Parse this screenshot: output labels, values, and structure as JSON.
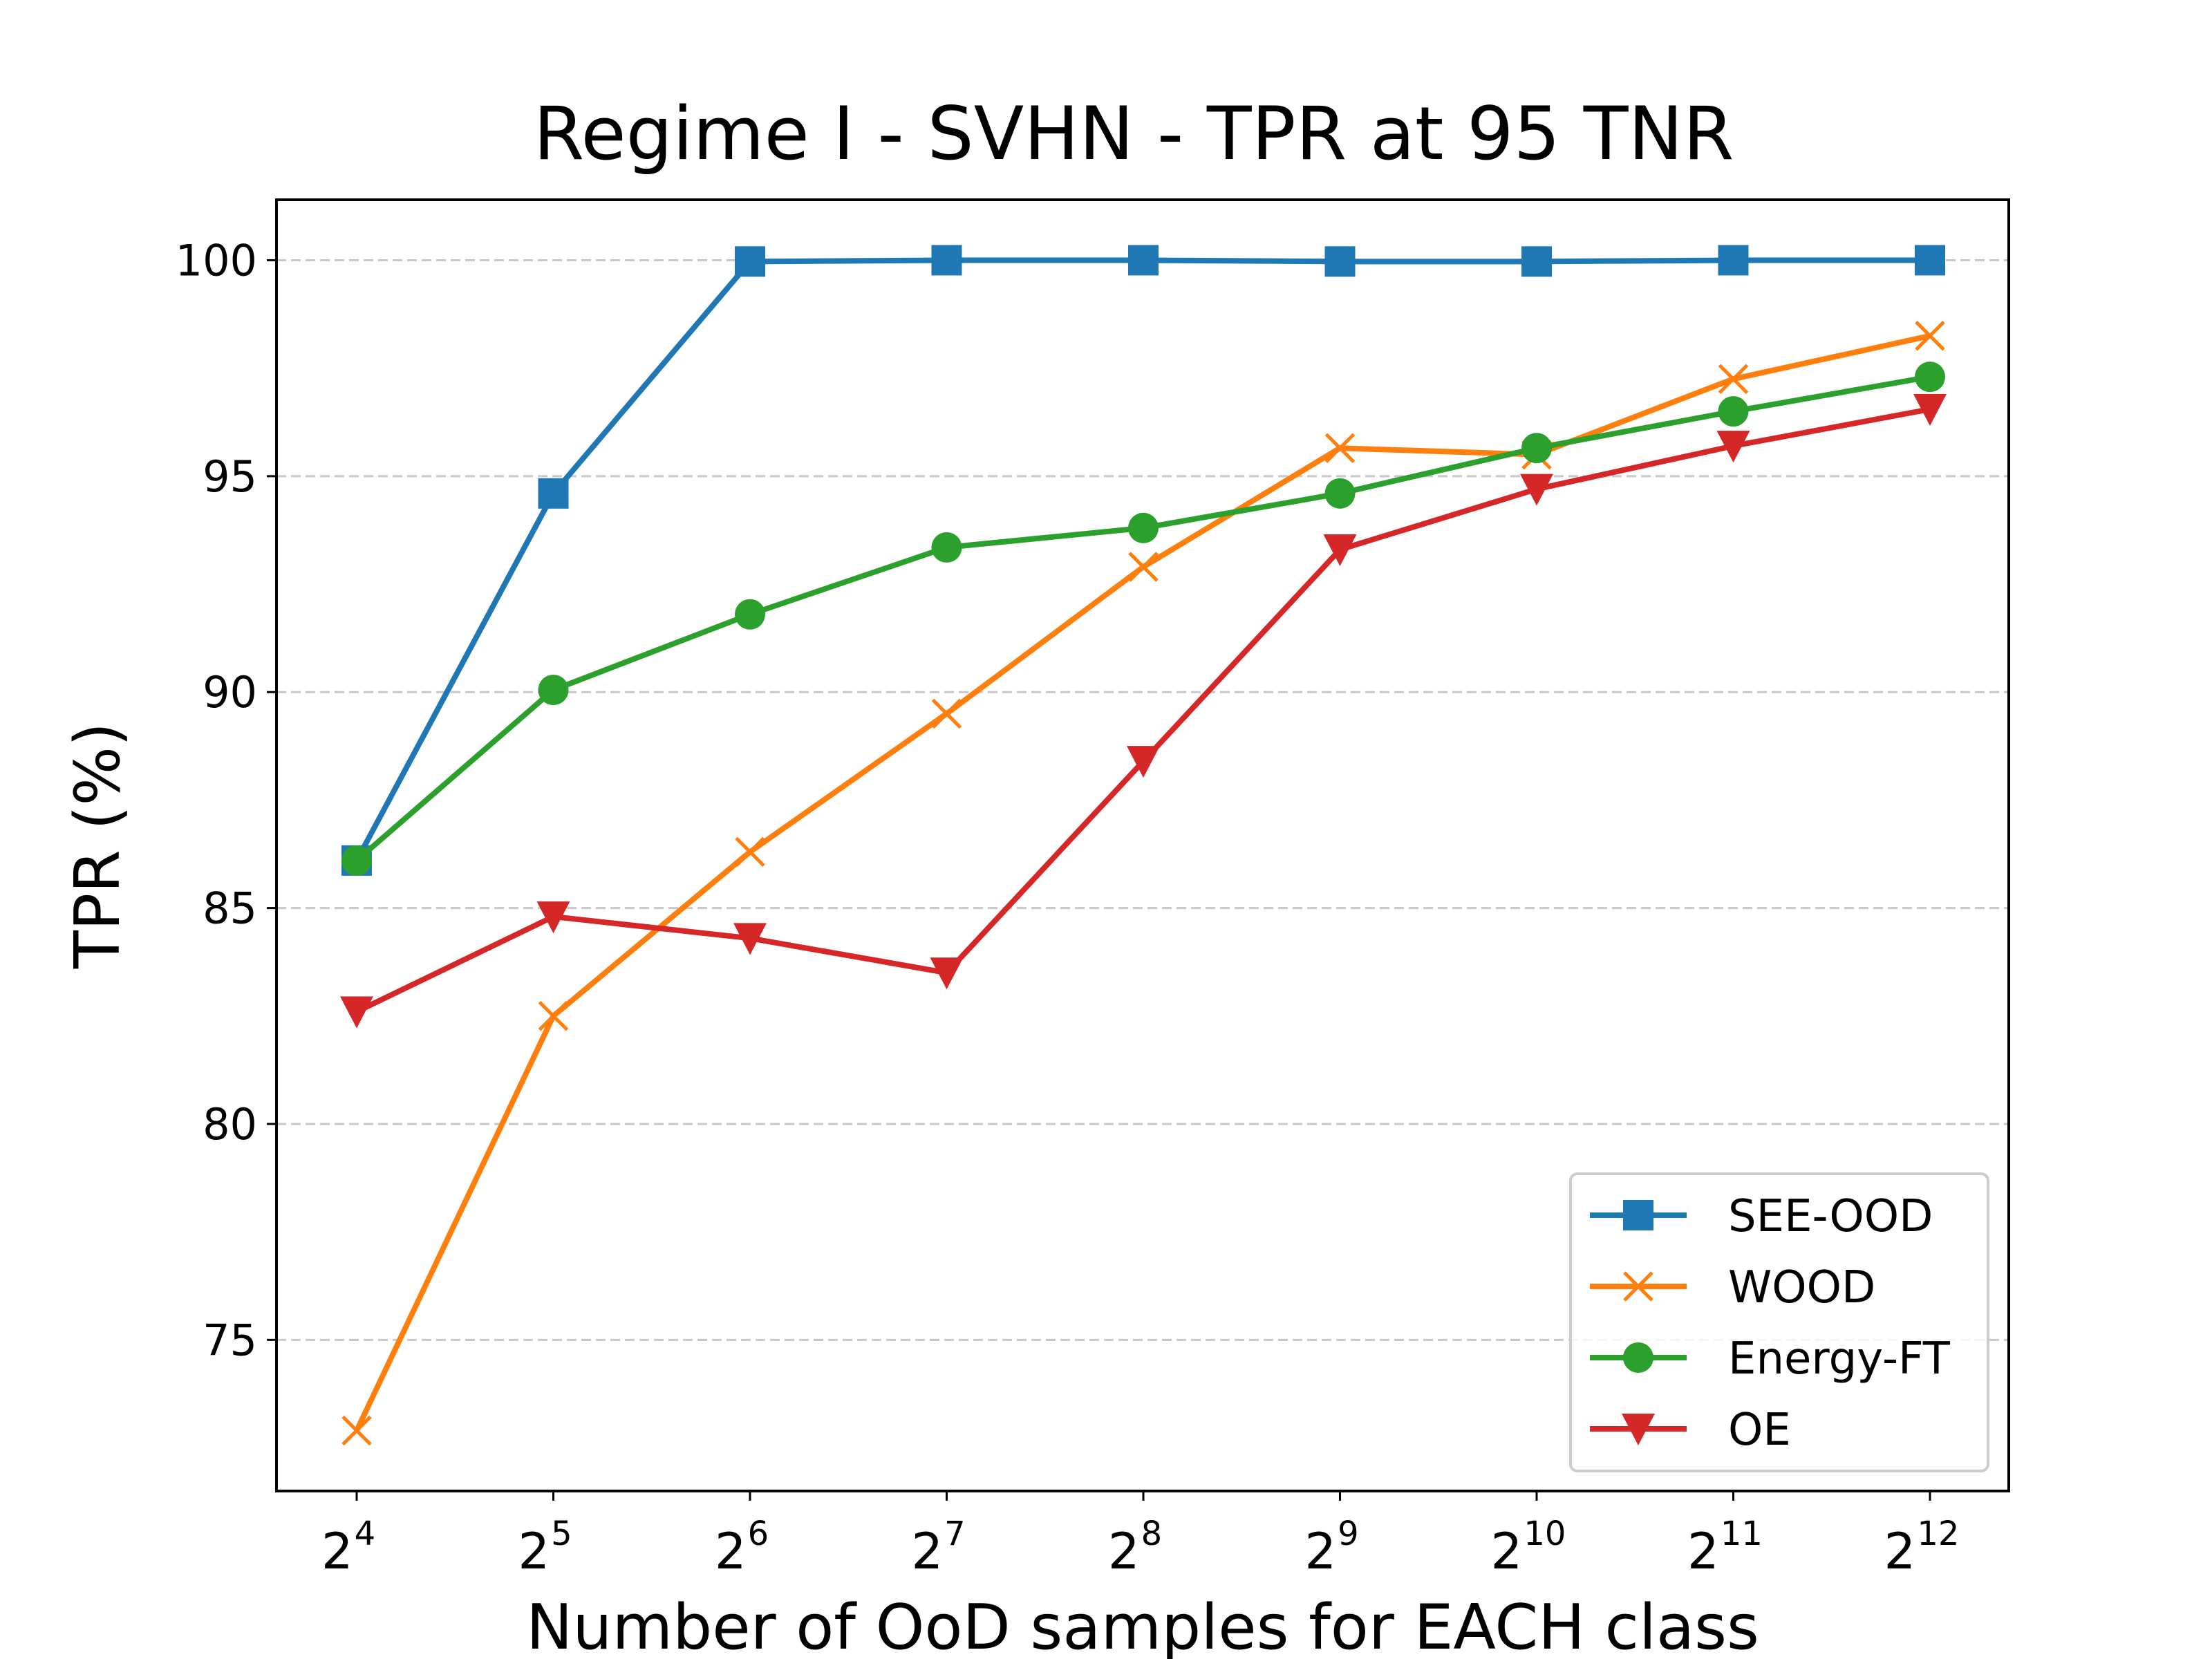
{
  "chart_data": {
    "type": "line",
    "title": "Regime I - SVHN - TPR at 95 TNR",
    "xlabel": "Number of OoD samples for EACH class",
    "ylabel": "TPR (%)",
    "x_base": "2",
    "x_exponents": [
      "4",
      "5",
      "6",
      "7",
      "8",
      "9",
      "10",
      "11",
      "12"
    ],
    "x": [
      16,
      32,
      64,
      128,
      256,
      512,
      1024,
      2048,
      4096
    ],
    "xscale": "log2",
    "ylim": [
      71.5,
      101.4
    ],
    "yticks": [
      75,
      80,
      85,
      90,
      95,
      100
    ],
    "grid": "horizontal dashed",
    "legend_position": "lower-right",
    "series": [
      {
        "name": "SEE-OOD",
        "color": "#1f77b4",
        "marker": "square",
        "values": [
          86.1,
          94.6,
          99.97,
          100.0,
          100.0,
          99.97,
          99.97,
          100.0,
          100.0
        ]
      },
      {
        "name": "WOOD",
        "color": "#ff7f0e",
        "marker": "x",
        "values": [
          72.9,
          82.5,
          86.3,
          89.5,
          92.9,
          95.65,
          95.5,
          97.25,
          98.25
        ]
      },
      {
        "name": "Energy-FT",
        "color": "#2ca02c",
        "marker": "circle",
        "values": [
          86.1,
          90.05,
          91.8,
          93.35,
          93.8,
          94.6,
          95.65,
          96.5,
          97.3
        ]
      },
      {
        "name": "OE",
        "color": "#d62728",
        "marker": "triangle-down",
        "values": [
          82.6,
          84.8,
          84.3,
          83.5,
          88.4,
          93.3,
          94.7,
          95.7,
          96.55
        ]
      }
    ]
  }
}
